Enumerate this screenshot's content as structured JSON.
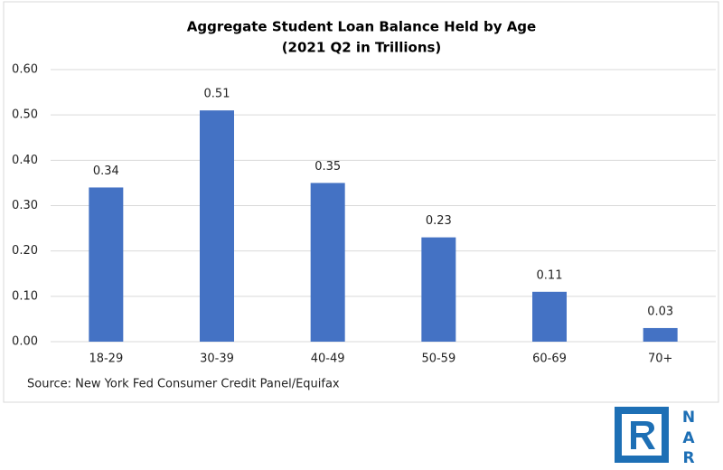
{
  "chart_data": {
    "type": "bar",
    "title": "Aggregate Student Loan Balance Held by Age",
    "subtitle": "(2021 Q2 in Trillions)",
    "categories": [
      "18-29",
      "30-39",
      "40-49",
      "50-59",
      "60-69",
      "70+"
    ],
    "values": [
      0.34,
      0.51,
      0.35,
      0.23,
      0.11,
      0.03
    ],
    "color": "#4472c4",
    "ylim": [
      0,
      0.6
    ],
    "yticks": [
      {
        "value": 0,
        "label": "0.00"
      },
      {
        "value": 0.1,
        "label": "0.10"
      },
      {
        "value": 0.2,
        "label": "0.20"
      },
      {
        "value": 0.3,
        "label": "0.30"
      },
      {
        "value": 0.4,
        "label": "0.40"
      },
      {
        "value": 0.5,
        "label": "0.50"
      },
      {
        "value": 0.6,
        "label": "0.60"
      }
    ],
    "grid": true,
    "source": "Source: New York Fed Consumer Credit Panel/Equifax"
  },
  "logo": {
    "letters": [
      "N",
      "A",
      "R"
    ]
  }
}
